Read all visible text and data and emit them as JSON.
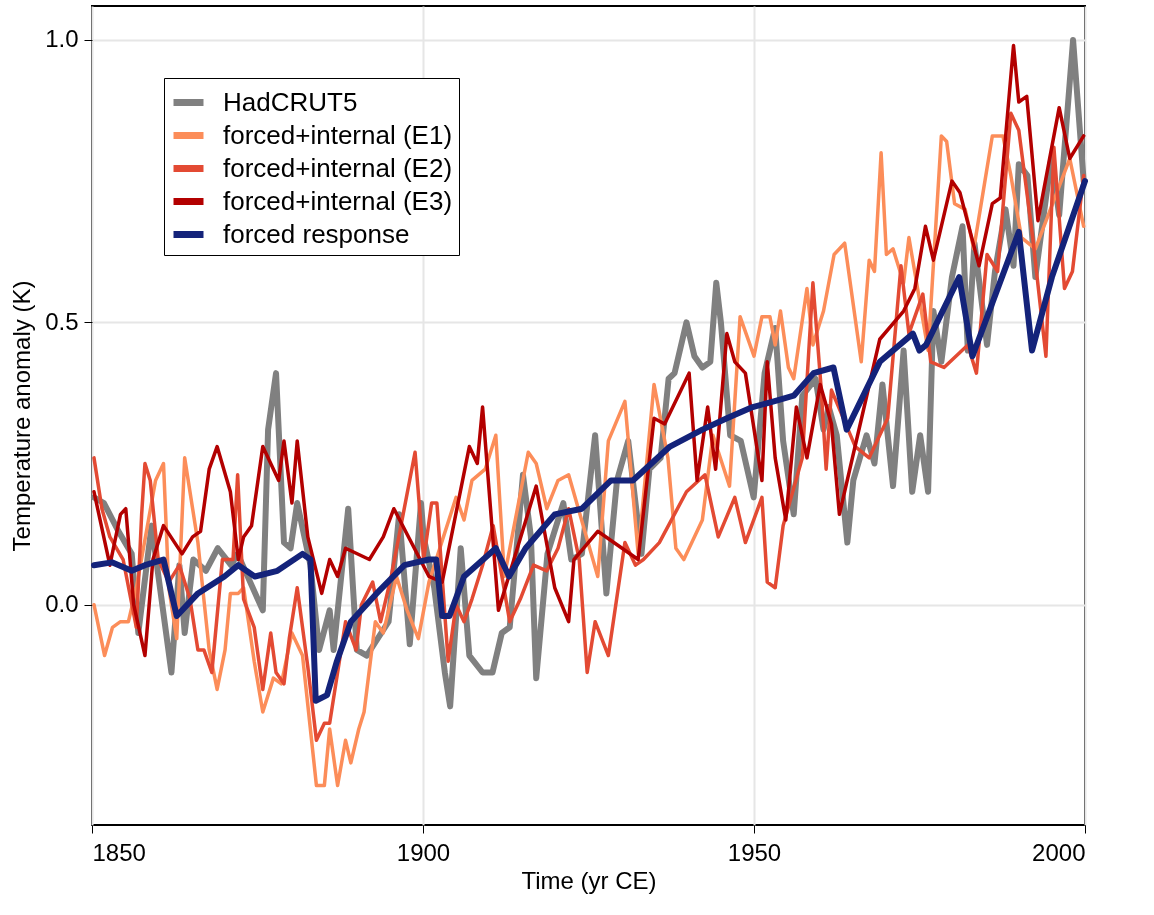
{
  "chart_data": {
    "type": "line",
    "xlabel": "Time (yr CE)",
    "ylabel": "Temperature anomaly (K)",
    "xlim": [
      1850,
      2000
    ],
    "xticks": [
      1850,
      1900,
      1950,
      2000
    ],
    "ylim": [
      -0.39,
      1.06
    ],
    "yticks": [
      {
        "value": 0,
        "label": "0.0"
      },
      {
        "value": 0.5,
        "label": "0.5"
      },
      {
        "value": 1,
        "label": "1.0"
      }
    ],
    "grid": true,
    "legend": "top left",
    "line_style": "solid",
    "series": [
      {
        "name": "HadCRUT5",
        "color": "#808080",
        "x": [
          1850.3,
          1851.8,
          1854,
          1856,
          1857,
          1859,
          1862,
          1863.2,
          1864,
          1865.3,
          1867.2,
          1869,
          1871,
          1872,
          1875.8,
          1876.6,
          1877.8,
          1879,
          1880,
          1881,
          1883,
          1884.3,
          1885.9,
          1886.5,
          1888.7,
          1890,
          1891.5,
          1894.8,
          1896.4,
          1898,
          1899.7,
          1900.1,
          1901.7,
          1903.3,
          1904.1,
          1905.7,
          1907,
          1909,
          1910.5,
          1911.9,
          1913.1,
          1915.1,
          1916.3,
          1917.1,
          1918.8,
          1921.2,
          1922.4,
          1924,
          1926,
          1927.7,
          1929.3,
          1931,
          1933,
          1934.2,
          1935.9,
          1937.1,
          1938,
          1939.8,
          1941,
          1942.2,
          1943.4,
          1944.3,
          1945,
          1946.4,
          1948,
          1949.95,
          1951.6,
          1953.2,
          1954.4,
          1956,
          1957.3,
          1959.3,
          1960.5,
          1961.3,
          1962.5,
          1964.1,
          1965,
          1967,
          1968.2,
          1969.4,
          1971,
          1972.6,
          1973.9,
          1975.1,
          1976.3,
          1977.1,
          1978.3,
          1979.9,
          1981.5,
          1982.3,
          1983.3,
          1985.2,
          1986.4,
          1988,
          1989.2,
          1990,
          1991.3,
          1992.5,
          1994.9,
          1996.1,
          1998.2,
          1999.8
        ],
        "values": [
          0.19,
          0.18,
          0.13,
          0.09,
          -0.05,
          0.14,
          -0.12,
          0.07,
          -0.05,
          0.08,
          0.06,
          0.1,
          0.07,
          0.09,
          -0.01,
          0.31,
          0.41,
          0.11,
          0.1,
          0.18,
          0.07,
          -0.08,
          -0.01,
          -0.08,
          0.17,
          -0.08,
          -0.09,
          -0.03,
          0.16,
          -0.07,
          0.18,
          0.12,
          0.03,
          -0.12,
          -0.18,
          0.1,
          -0.09,
          -0.12,
          -0.12,
          -0.05,
          -0.04,
          0.23,
          0.12,
          -0.13,
          0.09,
          0.18,
          0.08,
          0.09,
          0.3,
          0.02,
          0.22,
          0.29,
          0.09,
          0.24,
          0.26,
          0.4,
          0.41,
          0.5,
          0.44,
          0.42,
          0.43,
          0.57,
          0.5,
          0.3,
          0.29,
          0.19,
          0.41,
          0.49,
          0.29,
          0.16,
          0.37,
          0.4,
          0.31,
          0.35,
          0.3,
          0.11,
          0.22,
          0.3,
          0.25,
          0.39,
          0.21,
          0.45,
          0.2,
          0.3,
          0.2,
          0.52,
          0.43,
          0.58,
          0.67,
          0.45,
          0.64,
          0.46,
          0.59,
          0.7,
          0.6,
          0.78,
          0.76,
          0.58,
          0.79,
          0.69,
          1.0,
          0.75
        ]
      },
      {
        "name": "forced+internal (E1)",
        "color": "#fc8d59",
        "x": [
          1850.3,
          1851.9,
          1853.1,
          1854.3,
          1855.5,
          1856.7,
          1859.6,
          1860.8,
          1861.6,
          1862.8,
          1864,
          1866,
          1867.7,
          1868.9,
          1870.1,
          1870.9,
          1872.1,
          1872.9,
          1874.5,
          1875.8,
          1877.4,
          1878.6,
          1880.2,
          1881.8,
          1883.9,
          1885.1,
          1885.9,
          1887.1,
          1888.3,
          1889.1,
          1890.3,
          1891.1,
          1892.8,
          1894,
          1896,
          1897.6,
          1899.3,
          1900.9,
          1905,
          1906.2,
          1907.4,
          1909.4,
          1911,
          1912.3,
          1915.9,
          1917.1,
          1918.7,
          1920.4,
          1922,
          1926.4,
          1928,
          1930.5,
          1932.5,
          1934.9,
          1937,
          1938.2,
          1939.4,
          1942.2,
          1943.8,
          1946.3,
          1947.9,
          1950,
          1951.2,
          1952.4,
          1953.2,
          1954,
          1955.2,
          1956,
          1958,
          1958.9,
          1960.5,
          1962.1,
          1963.7,
          1966.2,
          1967.4,
          1968.2,
          1969.2,
          1970,
          1971,
          1972.6,
          1973.4,
          1976.3,
          1978.3,
          1979.1,
          1980.3,
          1981.9,
          1983.2,
          1986,
          1987.6,
          1988.8,
          1990.4,
          1992.5,
          1997.7,
          1999.8
        ],
        "values": [
          0.0,
          -0.09,
          -0.04,
          -0.03,
          -0.03,
          0.03,
          0.22,
          0.25,
          0.03,
          -0.06,
          0.26,
          0.11,
          -0.08,
          -0.15,
          -0.08,
          0.02,
          0.02,
          0.03,
          -0.1,
          -0.19,
          -0.13,
          -0.14,
          -0.05,
          -0.09,
          -0.32,
          -0.32,
          -0.22,
          -0.32,
          -0.24,
          -0.28,
          -0.22,
          -0.19,
          -0.03,
          -0.05,
          0.05,
          -0.01,
          -0.06,
          0.04,
          0.19,
          0.15,
          0.22,
          0.24,
          0.3,
          0.05,
          0.27,
          0.25,
          0.17,
          0.22,
          0.23,
          0.05,
          0.29,
          0.36,
          0.09,
          0.39,
          0.26,
          0.1,
          0.08,
          0.15,
          0.3,
          0.21,
          0.51,
          0.44,
          0.51,
          0.51,
          0.46,
          0.52,
          0.42,
          0.4,
          0.56,
          0.46,
          0.52,
          0.62,
          0.64,
          0.43,
          0.61,
          0.59,
          0.8,
          0.62,
          0.63,
          0.57,
          0.65,
          0.45,
          0.83,
          0.82,
          0.71,
          0.7,
          0.63,
          0.83,
          0.83,
          0.76,
          0.65,
          0.63,
          0.79,
          0.67
        ]
      },
      {
        "name": "forced+internal (E2)",
        "color": "#e34a33",
        "x": [
          1850.3,
          1851.5,
          1852.7,
          1854.7,
          1856.7,
          1857.5,
          1858,
          1858.8,
          1860,
          1861.6,
          1863.2,
          1864.8,
          1866,
          1866.9,
          1868.1,
          1869.7,
          1871.3,
          1872,
          1872.9,
          1874.5,
          1875.8,
          1877,
          1877.8,
          1879,
          1879.8,
          1881,
          1882.6,
          1883.9,
          1885.1,
          1885.9,
          1888.3,
          1889.9,
          1890.7,
          1892.4,
          1893.6,
          1895.2,
          1898.8,
          1900.1,
          1901.3,
          1902.1,
          1903.8,
          1905,
          1906.2,
          1907.4,
          1909,
          1910.6,
          1913.1,
          1914.7,
          1916.7,
          1918.7,
          1920.4,
          1922,
          1923.6,
          1924.8,
          1926,
          1928,
          1930.5,
          1932.1,
          1933.3,
          1935.7,
          1939.8,
          1942.6,
          1944.6,
          1947.1,
          1948.7,
          1951.2,
          1952,
          1953.2,
          1954.4,
          1957.3,
          1958.9,
          1960.1,
          1960.9,
          1961.7,
          1965.3,
          1967.4,
          1970.2,
          1972.2,
          1973.4,
          1975.5,
          1976.7,
          1978.7,
          1982.3,
          1983.6,
          1985.2,
          1986.8,
          1988.8,
          1990,
          1992.1,
          1994.1,
          1995.3,
          1996.9,
          1998.1,
          1999.8
        ],
        "values": [
          0.26,
          0.17,
          0.12,
          0.08,
          -0.04,
          0.16,
          0.25,
          0.22,
          0.08,
          0.04,
          0.07,
          0.01,
          -0.08,
          -0.08,
          -0.12,
          0.08,
          0.08,
          0.23,
          0.01,
          -0.04,
          -0.15,
          -0.05,
          -0.12,
          -0.14,
          -0.06,
          0.03,
          -0.11,
          -0.24,
          -0.21,
          -0.21,
          -0.03,
          -0.08,
          0.0,
          0.04,
          -0.03,
          0.05,
          0.27,
          0.08,
          0.18,
          0.18,
          -0.1,
          0.0,
          -0.03,
          0.01,
          0.07,
          0.14,
          -0.03,
          0.01,
          0.07,
          0.06,
          0.1,
          0.17,
          0.08,
          -0.12,
          -0.03,
          -0.09,
          0.11,
          0.07,
          0.08,
          0.11,
          0.2,
          0.23,
          0.12,
          0.19,
          0.11,
          0.19,
          0.04,
          0.03,
          0.14,
          0.26,
          0.57,
          0.39,
          0.24,
          0.38,
          0.28,
          0.26,
          0.33,
          0.6,
          0.48,
          0.55,
          0.43,
          0.42,
          0.46,
          0.41,
          0.62,
          0.59,
          0.87,
          0.84,
          0.65,
          0.44,
          0.81,
          0.56,
          0.59,
          0.76
        ]
      },
      {
        "name": "forced+internal (E3)",
        "color": "#b30000",
        "x": [
          1850.3,
          1852.7,
          1854.3,
          1855.1,
          1856.3,
          1858,
          1859.2,
          1860.8,
          1863.6,
          1865.2,
          1866.4,
          1867.7,
          1868.9,
          1870.9,
          1872.1,
          1872.9,
          1874.1,
          1875.8,
          1878.2,
          1879,
          1880.2,
          1881,
          1882.6,
          1884.7,
          1885.9,
          1887.1,
          1888.3,
          1891.9,
          1894,
          1895.6,
          1900.9,
          1902.9,
          1907,
          1908.2,
          1909,
          1911.4,
          1917.1,
          1919.9,
          1922,
          1922.8,
          1926.4,
          1932.5,
          1934.9,
          1936.5,
          1940.2,
          1941.4,
          1943,
          1944.2,
          1945.9,
          1947.1,
          1948.7,
          1951.2,
          1952,
          1953.2,
          1954.8,
          1956.4,
          1958,
          1960,
          1961.7,
          1962.9,
          1969,
          1972.6,
          1974.3,
          1975.9,
          1977.1,
          1979.9,
          1981.1,
          1984,
          1986,
          1987.2,
          1989.2,
          1990,
          1991.2,
          1992.9,
          1996.1,
          1997.7,
          1999.8
        ],
        "values": [
          0.2,
          0.07,
          0.16,
          0.17,
          0.0,
          -0.09,
          0.08,
          0.14,
          0.09,
          0.12,
          0.13,
          0.24,
          0.28,
          0.2,
          0.08,
          0.12,
          0.14,
          0.28,
          0.22,
          0.29,
          0.18,
          0.29,
          0.12,
          0.02,
          0.08,
          0.05,
          0.1,
          0.08,
          0.12,
          0.17,
          0.05,
          0.04,
          0.28,
          0.25,
          0.35,
          -0.01,
          0.21,
          0.03,
          -0.03,
          0.08,
          0.13,
          0.08,
          0.33,
          0.32,
          0.41,
          0.22,
          0.35,
          0.24,
          0.48,
          0.43,
          0.41,
          0.22,
          0.43,
          0.26,
          0.15,
          0.35,
          0.26,
          0.39,
          0.32,
          0.16,
          0.47,
          0.52,
          0.56,
          0.67,
          0.61,
          0.75,
          0.73,
          0.6,
          0.71,
          0.72,
          0.99,
          0.89,
          0.9,
          0.68,
          0.88,
          0.79,
          0.83
        ]
      },
      {
        "name": "forced response",
        "color": "#14237a",
        "x": [
          1850.3,
          1853,
          1856,
          1858,
          1860.8,
          1862.8,
          1866,
          1870,
          1872.1,
          1874.6,
          1878,
          1881.8,
          1883,
          1883.8,
          1885.5,
          1887,
          1889.1,
          1893,
          1897.2,
          1900.9,
          1902,
          1902.9,
          1904,
          1906.2,
          1911,
          1913,
          1915.5,
          1919.9,
          1924,
          1928.4,
          1931.7,
          1937.3,
          1942.2,
          1945.9,
          1949.8,
          1953,
          1956,
          1959,
          1962,
          1964,
          1969,
          1974,
          1975,
          1976,
          1981,
          1983,
          1990,
          1992,
          1995,
          2000
        ],
        "values": [
          0.07,
          0.075,
          0.06,
          0.07,
          0.08,
          -0.02,
          0.02,
          0.05,
          0.07,
          0.05,
          0.06,
          0.09,
          0.08,
          -0.17,
          -0.16,
          -0.1,
          -0.03,
          0.02,
          0.07,
          0.08,
          0.08,
          -0.02,
          -0.02,
          0.05,
          0.1,
          0.05,
          0.1,
          0.16,
          0.17,
          0.22,
          0.22,
          0.28,
          0.31,
          0.33,
          0.35,
          0.36,
          0.37,
          0.41,
          0.42,
          0.31,
          0.43,
          0.48,
          0.45,
          0.46,
          0.58,
          0.44,
          0.66,
          0.45,
          0.58,
          0.75
        ]
      }
    ]
  }
}
